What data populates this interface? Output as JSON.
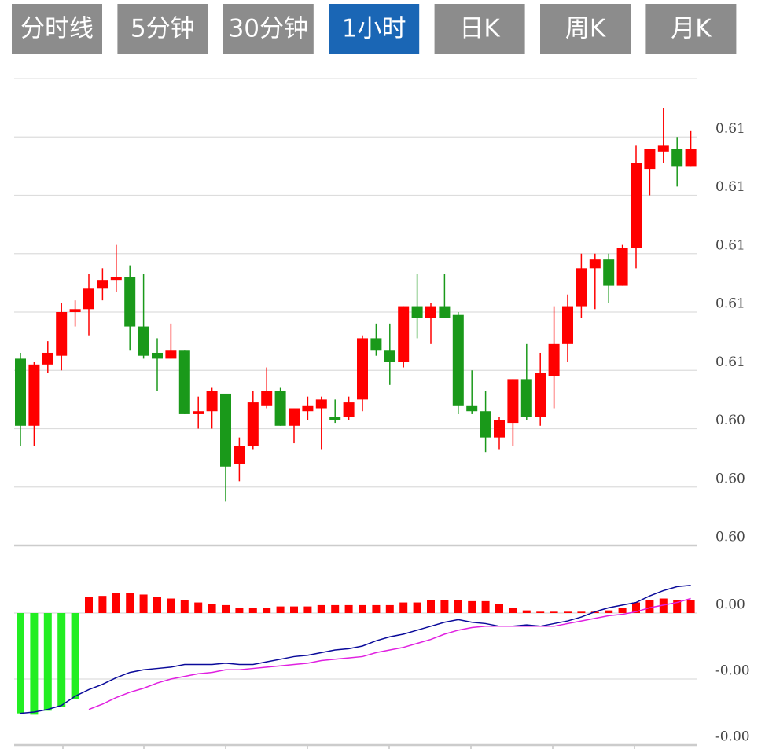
{
  "tabs": {
    "labels": [
      "分时线",
      "5分钟",
      "30分钟",
      "1小时",
      "日K",
      "周K",
      "月K"
    ],
    "active": 3,
    "color": "#8c8c8c",
    "active_color": "#1a66b5"
  },
  "chart_data": [
    {
      "type": "candlestick",
      "up_color": "#ff0000",
      "down_color": "#1a991a",
      "grid": true,
      "ylim": [
        0.6,
        0.616
      ],
      "yticks": [
        {
          "value": 0.6,
          "label": "0.60"
        },
        {
          "value": 0.602,
          "label": "0.60"
        },
        {
          "value": 0.604,
          "label": "0.60"
        },
        {
          "value": 0.606,
          "label": "0.61"
        },
        {
          "value": 0.608,
          "label": "0.61"
        },
        {
          "value": 0.61,
          "label": "0.61"
        },
        {
          "value": 0.612,
          "label": "0.61"
        },
        {
          "value": 0.614,
          "label": "0.61"
        }
      ],
      "open": [
        0.6064,
        0.6041,
        0.6062,
        0.6065,
        0.608,
        0.6081,
        0.6088,
        0.6091,
        0.6092,
        0.6075,
        0.6066,
        0.6064,
        0.6067,
        0.6045,
        0.6046,
        0.6052,
        0.6028,
        0.6034,
        0.6048,
        0.6053,
        0.6041,
        0.6046,
        0.6047,
        0.6044,
        0.6044,
        0.605,
        0.6071,
        0.6067,
        0.6063,
        0.6082,
        0.6078,
        0.6082,
        0.6079,
        0.6048,
        0.6046,
        0.6037,
        0.6042,
        0.6057,
        0.6044,
        0.6058,
        0.6069,
        0.6082,
        0.6095,
        0.6098,
        0.6089,
        0.6102,
        0.6129,
        0.6135,
        0.6136,
        0.613
      ],
      "high": [
        0.6066,
        0.6063,
        0.607,
        0.6083,
        0.6084,
        0.6093,
        0.6095,
        0.6103,
        0.6096,
        0.6093,
        0.6071,
        0.6076,
        0.6067,
        0.6051,
        0.6054,
        0.6052,
        0.6037,
        0.6053,
        0.6061,
        0.6054,
        0.6047,
        0.6051,
        0.6051,
        0.605,
        0.6051,
        0.6072,
        0.6076,
        0.6076,
        0.6082,
        0.6093,
        0.6083,
        0.6093,
        0.608,
        0.606,
        0.6053,
        0.6044,
        0.6057,
        0.6069,
        0.6066,
        0.6082,
        0.6086,
        0.61,
        0.61,
        0.61,
        0.6103,
        0.6137,
        0.6136,
        0.615,
        0.614,
        0.6142
      ],
      "low": [
        0.6034,
        0.6034,
        0.6059,
        0.606,
        0.6075,
        0.6072,
        0.6084,
        0.6087,
        0.6067,
        0.6064,
        0.6053,
        0.6064,
        0.6045,
        0.604,
        0.604,
        0.6015,
        0.6022,
        0.6033,
        0.6047,
        0.6041,
        0.6035,
        0.6043,
        0.6033,
        0.6042,
        0.6043,
        0.6046,
        0.6065,
        0.6055,
        0.6061,
        0.6071,
        0.6069,
        0.6078,
        0.6045,
        0.6045,
        0.6032,
        0.6033,
        0.6034,
        0.6043,
        0.6041,
        0.6047,
        0.6063,
        0.6078,
        0.6081,
        0.6083,
        0.6089,
        0.6095,
        0.612,
        0.6131,
        0.6123,
        0.613
      ],
      "close": [
        0.6041,
        0.6062,
        0.6066,
        0.608,
        0.6081,
        0.6088,
        0.6091,
        0.6092,
        0.6075,
        0.6065,
        0.6064,
        0.6067,
        0.6045,
        0.6046,
        0.6053,
        0.6027,
        0.6034,
        0.6049,
        0.6053,
        0.6041,
        0.6047,
        0.6048,
        0.605,
        0.6043,
        0.6049,
        0.6071,
        0.6067,
        0.6063,
        0.6082,
        0.6078,
        0.6082,
        0.6078,
        0.6048,
        0.6046,
        0.6037,
        0.6043,
        0.6057,
        0.6044,
        0.6059,
        0.6069,
        0.6082,
        0.6095,
        0.6098,
        0.6089,
        0.6102,
        0.6131,
        0.6136,
        0.6137,
        0.613,
        0.6136
      ]
    },
    {
      "type": "macd",
      "grid": true,
      "ylim": [
        -0.001,
        0.0005
      ],
      "yticks": [
        {
          "value": 0,
          "label": "0.00"
        },
        {
          "value": -0.0005,
          "label": "-0.00"
        },
        {
          "value": -0.001,
          "label": "-0.00"
        }
      ],
      "histogram": {
        "up_color": "#ff0000",
        "down_color": "#22ee22",
        "values": [
          -0.00076,
          -0.00077,
          -0.00074,
          -0.00071,
          -0.00065,
          0.00012,
          0.00013,
          0.00015,
          0.00015,
          0.00014,
          0.00012,
          0.00011,
          0.0001,
          8e-05,
          7e-05,
          6e-05,
          4e-05,
          4e-05,
          4e-05,
          5e-05,
          5e-05,
          5e-05,
          6e-05,
          6e-05,
          6e-05,
          6e-05,
          6e-05,
          6e-05,
          8e-05,
          8e-05,
          0.0001,
          0.0001,
          0.0001,
          9e-05,
          9e-05,
          7e-05,
          4e-05,
          2e-05,
          1e-05,
          1e-05,
          1e-05,
          1e-05,
          1e-05,
          2e-05,
          4e-05,
          8e-05,
          0.0001,
          0.00011,
          0.0001,
          0.0001
        ]
      },
      "series": [
        {
          "color": "#0a0a9a",
          "values": [
            -0.00076,
            -0.00075,
            -0.00073,
            -0.0007,
            -0.00063,
            -0.00058,
            -0.00054,
            -0.00049,
            -0.00045,
            -0.00043,
            -0.00042,
            -0.00041,
            -0.00039,
            -0.00039,
            -0.00039,
            -0.00038,
            -0.00039,
            -0.00039,
            -0.00037,
            -0.00035,
            -0.00033,
            -0.00032,
            -0.0003,
            -0.00028,
            -0.00027,
            -0.00025,
            -0.00021,
            -0.00018,
            -0.00016,
            -0.00013,
            -0.0001,
            -7e-05,
            -5e-05,
            -7e-05,
            -8e-05,
            -0.0001,
            -0.0001,
            -9e-05,
            -0.0001,
            -8e-05,
            -6e-05,
            -3e-05,
            1e-05,
            4e-05,
            6e-05,
            8e-05,
            0.00013,
            0.00017,
            0.0002,
            0.00021
          ]
        },
        {
          "color": "#e020e0",
          "values": [
            null,
            null,
            null,
            null,
            null,
            -0.00073,
            -0.00069,
            -0.00064,
            -0.0006,
            -0.00057,
            -0.00053,
            -0.0005,
            -0.00048,
            -0.00046,
            -0.00045,
            -0.00043,
            -0.00043,
            -0.00042,
            -0.00041,
            -0.0004,
            -0.00039,
            -0.00038,
            -0.00036,
            -0.00035,
            -0.00034,
            -0.00033,
            -0.0003,
            -0.00028,
            -0.00026,
            -0.00023,
            -0.0002,
            -0.00016,
            -0.00013,
            -0.00011,
            -0.0001,
            -0.0001,
            -0.0001,
            -0.0001,
            -0.0001,
            -0.0001,
            -8e-05,
            -6e-05,
            -4e-05,
            -2e-05,
            -1e-05,
            1e-05,
            4e-05,
            6e-05,
            8e-05,
            0.00011
          ]
        }
      ]
    }
  ]
}
